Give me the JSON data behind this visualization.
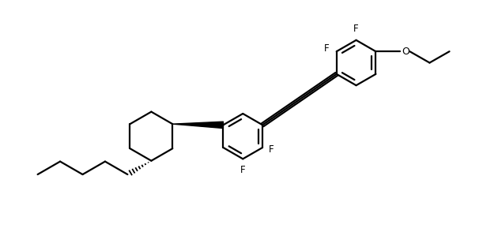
{
  "background_color": "#ffffff",
  "line_color": "#000000",
  "line_width": 1.6,
  "font_size": 8.5,
  "figsize": [
    6.3,
    2.94
  ],
  "dpi": 100,
  "xlim": [
    0.0,
    10.5
  ],
  "ylim": [
    0.0,
    4.9
  ],
  "ring_r": 0.48,
  "cy_r": 0.52
}
